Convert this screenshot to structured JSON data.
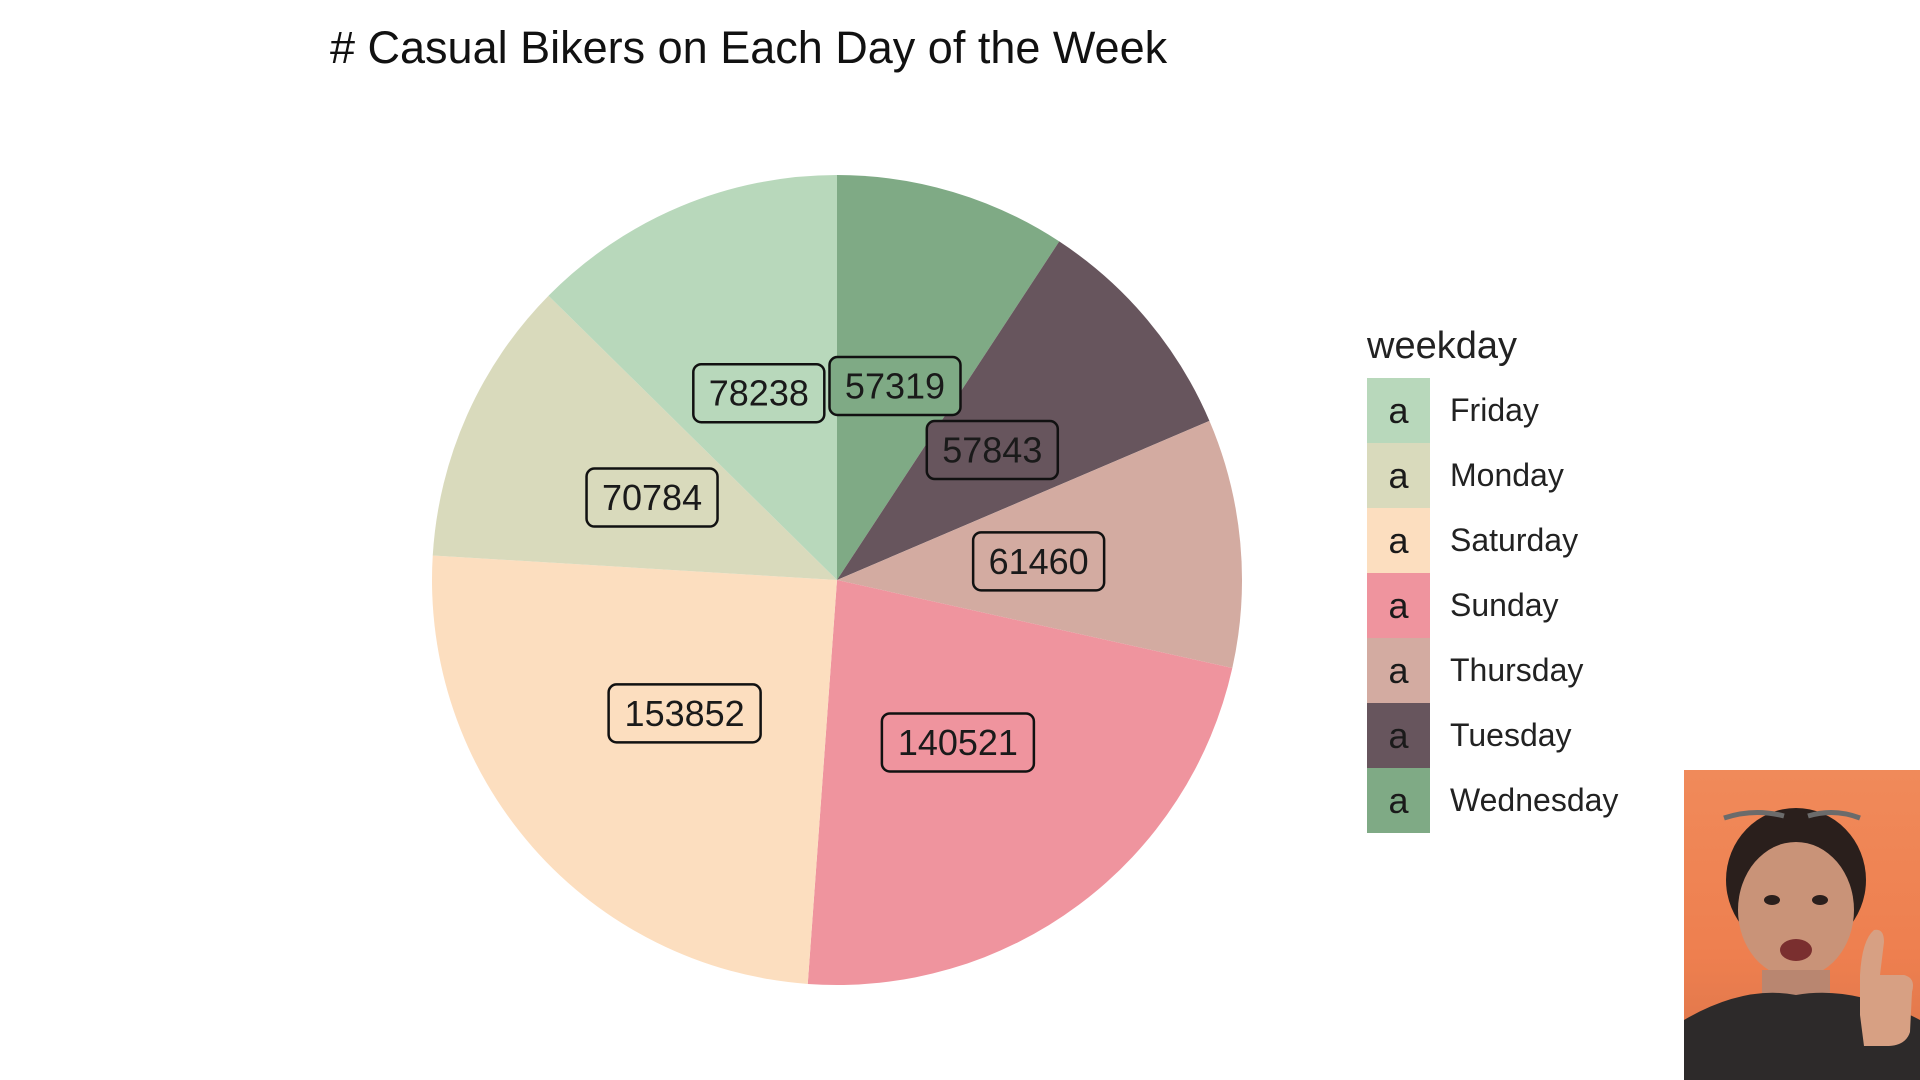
{
  "chart_data": {
    "type": "pie",
    "title": "# Casual Bikers on Each Day of the Week",
    "legend_title": "weekday",
    "legend_key_glyph": "a",
    "legend_position": "right",
    "slices": [
      {
        "name": "Friday",
        "value": 78238,
        "color": "#b8d8bb"
      },
      {
        "name": "Monday",
        "value": 70784,
        "color": "#d9dabc"
      },
      {
        "name": "Saturday",
        "value": 153852,
        "color": "#fcdebf"
      },
      {
        "name": "Sunday",
        "value": 140521,
        "color": "#ef949e"
      },
      {
        "name": "Thursday",
        "value": 61460,
        "color": "#d3aba1"
      },
      {
        "name": "Tuesday",
        "value": 57843,
        "color": "#67555d"
      },
      {
        "name": "Wednesday",
        "value": 57319,
        "color": "#7faa85"
      }
    ],
    "draw_order_from_top_clockwise": [
      "Wednesday",
      "Tuesday",
      "Thursday",
      "Sunday",
      "Saturday",
      "Monday",
      "Friday"
    ]
  },
  "webcam_overlay": {
    "icon": "person-thumbs-up-icon",
    "background_color": "#f08a5a"
  }
}
